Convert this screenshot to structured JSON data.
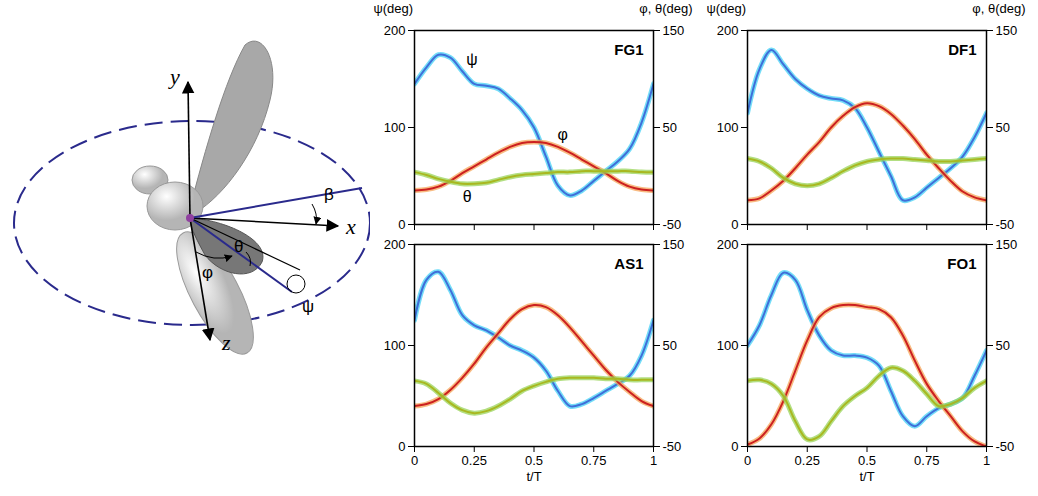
{
  "diagram": {
    "axes": [
      "x",
      "y",
      "z"
    ],
    "angles": [
      "β",
      "φ",
      "θ",
      "ψ"
    ]
  },
  "chart_data": [
    {
      "type": "line",
      "title": "FG1",
      "x": [
        0,
        0.05,
        0.1,
        0.15,
        0.2,
        0.25,
        0.3,
        0.35,
        0.4,
        0.45,
        0.5,
        0.55,
        0.6,
        0.65,
        0.7,
        0.75,
        0.8,
        0.85,
        0.9,
        0.95,
        1
      ],
      "xlim": [
        0,
        1
      ],
      "xticks": [
        0,
        0.25,
        0.5,
        0.75,
        1
      ],
      "ylim": [
        0,
        200
      ],
      "yticks": [
        0,
        100,
        200
      ],
      "y2lim": [
        -50,
        150
      ],
      "y2ticks": [
        -50,
        50,
        150
      ],
      "ylabel": "ψ(deg)",
      "y2label": "φ, θ(deg)",
      "tick_labels": "y",
      "series": [
        {
          "name": "ψ",
          "color": "#3f6fd9",
          "values": [
            145,
            162,
            175,
            172,
            158,
            145,
            143,
            140,
            130,
            118,
            100,
            70,
            40,
            30,
            35,
            45,
            55,
            65,
            78,
            105,
            145
          ]
        },
        {
          "name": "φ",
          "color": "#cc2020",
          "axis": "y2",
          "values": [
            -15,
            -14,
            -11,
            -5,
            3,
            10,
            17,
            24,
            30,
            34,
            35,
            34,
            30,
            24,
            17,
            10,
            3,
            -5,
            -11,
            -14,
            -15
          ]
        },
        {
          "name": "θ",
          "color": "#a8b820",
          "axis": "y2",
          "values": [
            4,
            1,
            -3,
            -6,
            -8,
            -8,
            -7,
            -4,
            -1,
            1,
            2,
            3,
            4,
            4,
            5,
            5,
            5,
            5,
            5,
            4,
            4
          ]
        }
      ],
      "annotations": [
        {
          "text": "ψ",
          "x": 0.24,
          "y": 170
        },
        {
          "text": "φ",
          "x": 0.62,
          "y": 42,
          "axis": "y2"
        },
        {
          "text": "θ",
          "x": 0.22,
          "y": -22,
          "axis": "y2"
        }
      ]
    },
    {
      "type": "line",
      "title": "DF1",
      "x": [
        0,
        0.05,
        0.1,
        0.15,
        0.2,
        0.25,
        0.3,
        0.35,
        0.4,
        0.45,
        0.5,
        0.55,
        0.6,
        0.65,
        0.7,
        0.75,
        0.8,
        0.85,
        0.9,
        0.95,
        1
      ],
      "xlim": [
        0,
        1
      ],
      "xticks": [
        0,
        0.25,
        0.5,
        0.75,
        1
      ],
      "ylim": [
        0,
        200
      ],
      "yticks": [
        0,
        100,
        200
      ],
      "y2lim": [
        -50,
        150
      ],
      "y2ticks": [
        -50,
        50,
        150
      ],
      "ylabel": "ψ(deg)",
      "y2label": "φ, θ(deg)",
      "tick_labels": "y",
      "series": [
        {
          "name": "ψ",
          "color": "#3f6fd9",
          "values": [
            115,
            160,
            180,
            165,
            150,
            140,
            133,
            130,
            128,
            120,
            100,
            75,
            50,
            25,
            28,
            38,
            48,
            58,
            70,
            90,
            115
          ]
        },
        {
          "name": "φ",
          "color": "#cc2020",
          "axis": "y2",
          "values": [
            -25,
            -23,
            -15,
            -5,
            8,
            22,
            35,
            50,
            62,
            71,
            75,
            72,
            64,
            52,
            38,
            22,
            8,
            -5,
            -16,
            -22,
            -25
          ]
        },
        {
          "name": "θ",
          "color": "#a8b820",
          "axis": "y2",
          "values": [
            18,
            15,
            8,
            -2,
            -8,
            -10,
            -8,
            -2,
            5,
            11,
            15,
            17,
            18,
            18,
            17,
            16,
            15,
            15,
            16,
            17,
            18
          ]
        }
      ]
    },
    {
      "type": "line",
      "title": "AS1",
      "x": [
        0,
        0.05,
        0.1,
        0.15,
        0.2,
        0.25,
        0.3,
        0.35,
        0.4,
        0.45,
        0.5,
        0.55,
        0.6,
        0.65,
        0.7,
        0.75,
        0.8,
        0.85,
        0.9,
        0.95,
        1
      ],
      "xlim": [
        0,
        1
      ],
      "xticks": [
        0,
        0.25,
        0.5,
        0.75,
        1
      ],
      "ylim": [
        0,
        200
      ],
      "yticks": [
        0,
        100,
        200
      ],
      "y2lim": [
        -50,
        150
      ],
      "y2ticks": [
        -50,
        50,
        150
      ],
      "xlabel": "t/T",
      "series": [
        {
          "name": "ψ",
          "color": "#3f6fd9",
          "values": [
            125,
            165,
            173,
            155,
            130,
            120,
            115,
            108,
            100,
            95,
            88,
            75,
            55,
            40,
            42,
            48,
            55,
            62,
            70,
            90,
            125
          ]
        },
        {
          "name": "φ",
          "color": "#cc2020",
          "axis": "y2",
          "values": [
            -10,
            -8,
            -3,
            6,
            18,
            32,
            48,
            62,
            76,
            86,
            90,
            88,
            80,
            68,
            54,
            40,
            26,
            14,
            4,
            -5,
            -10
          ]
        },
        {
          "name": "θ",
          "color": "#a8b820",
          "axis": "y2",
          "values": [
            15,
            12,
            3,
            -7,
            -14,
            -17,
            -15,
            -10,
            -3,
            5,
            10,
            14,
            17,
            18,
            18,
            18,
            17,
            17,
            16,
            16,
            16
          ]
        }
      ]
    },
    {
      "type": "line",
      "title": "FO1",
      "x": [
        0,
        0.05,
        0.1,
        0.15,
        0.2,
        0.25,
        0.3,
        0.35,
        0.4,
        0.45,
        0.5,
        0.55,
        0.6,
        0.65,
        0.7,
        0.75,
        0.8,
        0.85,
        0.9,
        0.95,
        1
      ],
      "xlim": [
        0,
        1
      ],
      "xticks": [
        0,
        0.25,
        0.5,
        0.75,
        1
      ],
      "ylim": [
        0,
        200
      ],
      "yticks": [
        0,
        100,
        200
      ],
      "y2lim": [
        -50,
        150
      ],
      "y2ticks": [
        -50,
        50,
        150
      ],
      "xlabel": "t/T",
      "series": [
        {
          "name": "ψ",
          "color": "#3f6fd9",
          "values": [
            100,
            120,
            150,
            172,
            165,
            135,
            110,
            95,
            90,
            90,
            88,
            80,
            55,
            30,
            20,
            30,
            38,
            42,
            48,
            70,
            95
          ]
        },
        {
          "name": "φ",
          "color": "#cc2020",
          "axis": "y2",
          "values": [
            -48,
            -42,
            -28,
            -5,
            25,
            55,
            78,
            87,
            90,
            90,
            88,
            86,
            78,
            60,
            35,
            12,
            -5,
            -20,
            -35,
            -45,
            -50
          ]
        },
        {
          "name": "θ",
          "color": "#a8b820",
          "axis": "y2",
          "values": [
            15,
            16,
            12,
            0,
            -25,
            -43,
            -40,
            -25,
            -10,
            0,
            8,
            20,
            28,
            25,
            15,
            2,
            -10,
            -8,
            -2,
            8,
            15
          ]
        }
      ]
    }
  ]
}
